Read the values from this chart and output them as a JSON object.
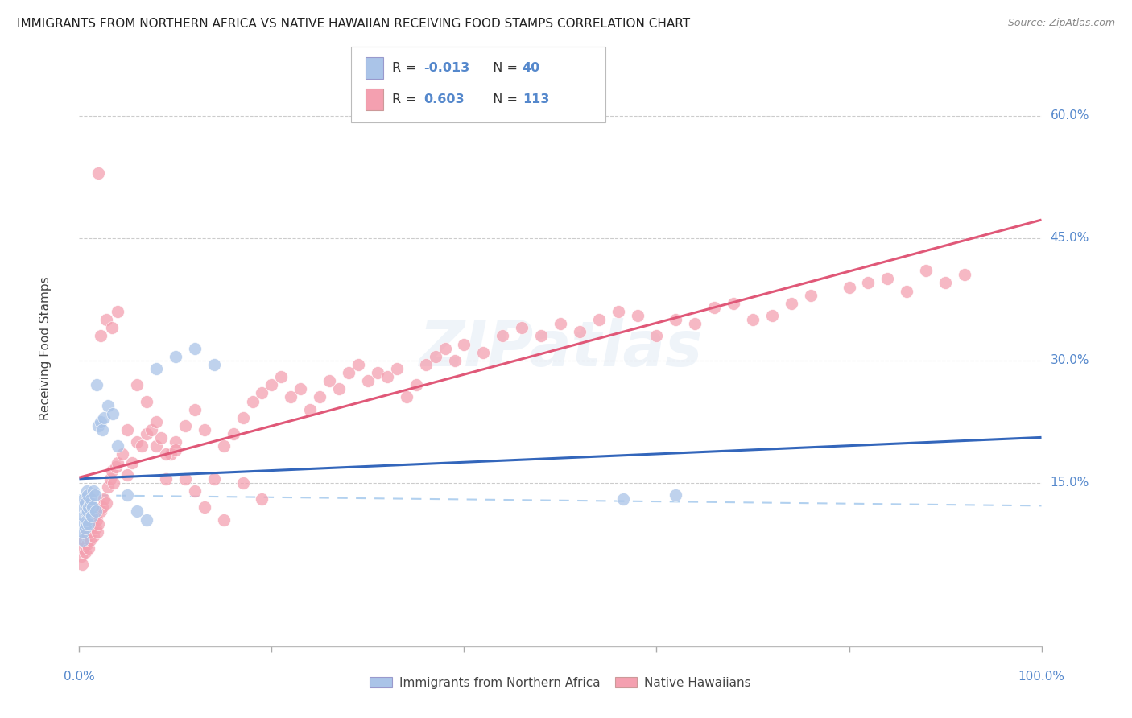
{
  "title": "IMMIGRANTS FROM NORTHERN AFRICA VS NATIVE HAWAIIAN RECEIVING FOOD STAMPS CORRELATION CHART",
  "source": "Source: ZipAtlas.com",
  "ylabel": "Receiving Food Stamps",
  "ytick_labels": [
    "60.0%",
    "45.0%",
    "30.0%",
    "15.0%"
  ],
  "ytick_values": [
    0.6,
    0.45,
    0.3,
    0.15
  ],
  "xlim": [
    0.0,
    1.0
  ],
  "ylim": [
    -0.05,
    0.68
  ],
  "color_blue": "#aac4e8",
  "color_pink": "#f4a0b0",
  "color_blue_line": "#3366bb",
  "color_pink_line": "#e05878",
  "color_dashed": "#aaccee",
  "watermark": "ZIPatlas",
  "blue_scatter_x": [
    0.002,
    0.003,
    0.004,
    0.004,
    0.005,
    0.005,
    0.006,
    0.006,
    0.007,
    0.007,
    0.008,
    0.008,
    0.009,
    0.009,
    0.01,
    0.01,
    0.011,
    0.012,
    0.013,
    0.014,
    0.015,
    0.016,
    0.017,
    0.018,
    0.02,
    0.022,
    0.024,
    0.026,
    0.03,
    0.035,
    0.04,
    0.05,
    0.06,
    0.07,
    0.08,
    0.1,
    0.12,
    0.14,
    0.565,
    0.62
  ],
  "blue_scatter_y": [
    0.1,
    0.12,
    0.08,
    0.09,
    0.11,
    0.13,
    0.095,
    0.125,
    0.1,
    0.115,
    0.14,
    0.105,
    0.135,
    0.115,
    0.12,
    0.1,
    0.125,
    0.13,
    0.11,
    0.12,
    0.14,
    0.135,
    0.115,
    0.27,
    0.22,
    0.225,
    0.215,
    0.23,
    0.245,
    0.235,
    0.195,
    0.135,
    0.115,
    0.105,
    0.29,
    0.305,
    0.315,
    0.295,
    0.13,
    0.135
  ],
  "pink_scatter_x": [
    0.002,
    0.003,
    0.004,
    0.005,
    0.006,
    0.007,
    0.008,
    0.009,
    0.01,
    0.011,
    0.012,
    0.013,
    0.014,
    0.015,
    0.016,
    0.017,
    0.018,
    0.019,
    0.02,
    0.022,
    0.024,
    0.026,
    0.028,
    0.03,
    0.032,
    0.034,
    0.036,
    0.038,
    0.04,
    0.045,
    0.05,
    0.055,
    0.06,
    0.065,
    0.07,
    0.075,
    0.08,
    0.085,
    0.09,
    0.095,
    0.1,
    0.11,
    0.12,
    0.13,
    0.14,
    0.15,
    0.16,
    0.17,
    0.18,
    0.19,
    0.2,
    0.21,
    0.22,
    0.23,
    0.24,
    0.25,
    0.26,
    0.27,
    0.28,
    0.29,
    0.3,
    0.31,
    0.32,
    0.33,
    0.34,
    0.35,
    0.36,
    0.37,
    0.38,
    0.39,
    0.4,
    0.42,
    0.44,
    0.46,
    0.48,
    0.5,
    0.52,
    0.54,
    0.56,
    0.58,
    0.6,
    0.62,
    0.64,
    0.66,
    0.68,
    0.7,
    0.72,
    0.74,
    0.76,
    0.8,
    0.82,
    0.84,
    0.86,
    0.88,
    0.9,
    0.92,
    0.022,
    0.028,
    0.034,
    0.04,
    0.05,
    0.06,
    0.07,
    0.08,
    0.09,
    0.1,
    0.11,
    0.12,
    0.13,
    0.15,
    0.17,
    0.19,
    0.02
  ],
  "pink_scatter_y": [
    0.06,
    0.05,
    0.07,
    0.08,
    0.065,
    0.09,
    0.075,
    0.085,
    0.07,
    0.08,
    0.09,
    0.095,
    0.1,
    0.085,
    0.11,
    0.095,
    0.105,
    0.09,
    0.1,
    0.115,
    0.12,
    0.13,
    0.125,
    0.145,
    0.155,
    0.165,
    0.15,
    0.17,
    0.175,
    0.185,
    0.16,
    0.175,
    0.2,
    0.195,
    0.21,
    0.215,
    0.195,
    0.205,
    0.155,
    0.185,
    0.2,
    0.22,
    0.24,
    0.215,
    0.155,
    0.195,
    0.21,
    0.23,
    0.25,
    0.26,
    0.27,
    0.28,
    0.255,
    0.265,
    0.24,
    0.255,
    0.275,
    0.265,
    0.285,
    0.295,
    0.275,
    0.285,
    0.28,
    0.29,
    0.255,
    0.27,
    0.295,
    0.305,
    0.315,
    0.3,
    0.32,
    0.31,
    0.33,
    0.34,
    0.33,
    0.345,
    0.335,
    0.35,
    0.36,
    0.355,
    0.33,
    0.35,
    0.345,
    0.365,
    0.37,
    0.35,
    0.355,
    0.37,
    0.38,
    0.39,
    0.395,
    0.4,
    0.385,
    0.41,
    0.395,
    0.405,
    0.33,
    0.35,
    0.34,
    0.36,
    0.215,
    0.27,
    0.25,
    0.225,
    0.185,
    0.19,
    0.155,
    0.14,
    0.12,
    0.105,
    0.15,
    0.13,
    0.53
  ]
}
